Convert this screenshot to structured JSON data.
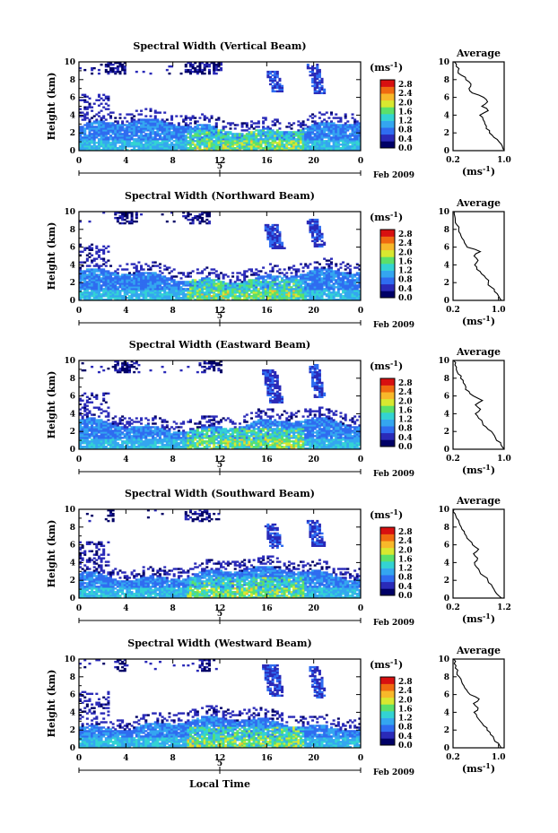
{
  "figure": {
    "xlabel": "Local Time",
    "date_mark": "5",
    "date_text": "Feb 2009"
  },
  "colorbar": {
    "unit": "(ms",
    "unit_exp": "-1",
    "unit_close": ")",
    "ticks": [
      "0.0",
      "0.4",
      "0.8",
      "1.2",
      "1.6",
      "2.0",
      "2.4",
      "2.8"
    ],
    "colors": [
      "#000066",
      "#2a2ab8",
      "#2f6cf0",
      "#34a6f0",
      "#33d3d3",
      "#5be06a",
      "#d8e830",
      "#f8b82a",
      "#f06a10",
      "#d81010"
    ],
    "range": [
      0,
      3.0
    ]
  },
  "average_panel": {
    "title": "Average",
    "xlabel": "(ms",
    "xlabel_exp": "-1",
    "xlabel_close": ")"
  },
  "chart_data": [
    {
      "type": "heatmap",
      "title": "Spectral Width (Vertical Beam)",
      "ylabel": "Height (km)",
      "x_ticks": [
        "0",
        "4",
        "8",
        "12",
        "16",
        "20",
        "0"
      ],
      "y_ticks": [
        "0",
        "2",
        "4",
        "6",
        "8",
        "10"
      ],
      "xlim": [
        0,
        24
      ],
      "ylim": [
        0,
        10
      ],
      "seed": 11,
      "plumes": [
        [
          15.8,
          16.8,
          6.5,
          8.8
        ],
        [
          19.3,
          20.3,
          6.3,
          9.7
        ]
      ],
      "upper_gaps": [
        [
          2,
          4
        ],
        [
          9,
          12
        ]
      ],
      "average": {
        "xlim": [
          0.2,
          1.0
        ],
        "x_ticks": [
          "0.2",
          "1.0"
        ],
        "y_ticks": [
          "0",
          "2",
          "4",
          "6",
          "8",
          "10"
        ],
        "height": [
          0,
          0.5,
          1,
          1.5,
          2,
          2.5,
          3,
          3.5,
          4,
          4.5,
          5,
          5.5,
          6,
          6.5,
          7,
          7.5,
          8,
          8.5,
          9,
          9.5,
          10
        ],
        "width": [
          1.0,
          0.97,
          0.92,
          0.84,
          0.77,
          0.72,
          0.7,
          0.67,
          0.62,
          0.75,
          0.65,
          0.74,
          0.68,
          0.5,
          0.45,
          0.48,
          0.4,
          0.33,
          0.28,
          0.25,
          0.22
        ]
      }
    },
    {
      "type": "heatmap",
      "title": "Spectral Width (Northward Beam)",
      "ylabel": "Height (km)",
      "x_ticks": [
        "0",
        "4",
        "8",
        "12",
        "16",
        "20",
        "0"
      ],
      "y_ticks": [
        "0",
        "2",
        "4",
        "6",
        "8",
        "10"
      ],
      "xlim": [
        0,
        24
      ],
      "ylim": [
        0,
        10
      ],
      "seed": 23,
      "plumes": [
        [
          15.6,
          16.8,
          5.8,
          8.5
        ],
        [
          19.3,
          20.3,
          5.9,
          9.1
        ]
      ],
      "upper_gaps": [
        [
          3,
          5
        ],
        [
          9,
          11
        ]
      ],
      "average": {
        "xlim": [
          0.2,
          1.1
        ],
        "x_ticks": [
          "0.2",
          "1.0"
        ],
        "y_ticks": [
          "0",
          "2",
          "4",
          "6",
          "8",
          "10"
        ],
        "height": [
          0,
          0.5,
          1,
          1.5,
          2,
          2.5,
          3,
          3.5,
          4,
          4.5,
          5,
          5.5,
          6,
          6.5,
          7,
          7.5,
          8,
          8.5,
          9,
          9.5,
          10
        ],
        "width": [
          1.05,
          1.0,
          0.93,
          0.87,
          0.82,
          0.78,
          0.7,
          0.62,
          0.58,
          0.64,
          0.57,
          0.68,
          0.45,
          0.4,
          0.36,
          0.33,
          0.3,
          0.27,
          0.24,
          0.23,
          0.22
        ]
      }
    },
    {
      "type": "heatmap",
      "title": "Spectral Width (Eastward Beam)",
      "ylabel": "Height (km)",
      "x_ticks": [
        "0",
        "4",
        "8",
        "12",
        "16",
        "20",
        "0"
      ],
      "y_ticks": [
        "0",
        "2",
        "4",
        "6",
        "8",
        "10"
      ],
      "xlim": [
        0,
        24
      ],
      "ylim": [
        0,
        10
      ],
      "seed": 37,
      "plumes": [
        [
          15.5,
          16.7,
          5.2,
          8.9
        ],
        [
          19.4,
          20.3,
          5.7,
          9.5
        ]
      ],
      "upper_gaps": [
        [
          3,
          5
        ],
        [
          10,
          12
        ]
      ],
      "average": {
        "xlim": [
          0.2,
          1.0
        ],
        "x_ticks": [
          "0.2",
          "1.0"
        ],
        "y_ticks": [
          "0",
          "2",
          "4",
          "6",
          "8",
          "10"
        ],
        "height": [
          0,
          0.5,
          1,
          1.5,
          2,
          2.5,
          3,
          3.5,
          4,
          4.5,
          5,
          5.5,
          6,
          6.5,
          7,
          7.5,
          8,
          8.5,
          9,
          9.5,
          10
        ],
        "width": [
          1.0,
          0.95,
          0.88,
          0.85,
          0.8,
          0.72,
          0.66,
          0.6,
          0.55,
          0.63,
          0.55,
          0.66,
          0.52,
          0.45,
          0.4,
          0.36,
          0.32,
          0.28,
          0.25,
          0.23,
          0.21
        ]
      }
    },
    {
      "type": "heatmap",
      "title": "Spectral Width (Southward Beam)",
      "ylabel": "Height (km)",
      "x_ticks": [
        "0",
        "4",
        "8",
        "12",
        "16",
        "20",
        "0"
      ],
      "y_ticks": [
        "0",
        "2",
        "4",
        "6",
        "8",
        "10"
      ],
      "xlim": [
        0,
        24
      ],
      "ylim": [
        0,
        10
      ],
      "seed": 53,
      "plumes": [
        [
          15.6,
          16.7,
          5.6,
          8.4
        ],
        [
          19.2,
          20.3,
          5.7,
          8.7
        ]
      ],
      "upper_gaps": [
        [
          2,
          3
        ],
        [
          9,
          11
        ]
      ],
      "average": {
        "xlim": [
          0.2,
          1.2
        ],
        "x_ticks": [
          "0.2",
          "1.2"
        ],
        "y_ticks": [
          "0",
          "2",
          "4",
          "6",
          "8",
          "10"
        ],
        "height": [
          0,
          0.5,
          1,
          1.5,
          2,
          2.5,
          3,
          3.5,
          4,
          4.5,
          5,
          5.5,
          6,
          6.5,
          7,
          7.5,
          8,
          8.5,
          9,
          9.5,
          10
        ],
        "width": [
          1.15,
          1.05,
          1.0,
          0.95,
          0.88,
          0.8,
          0.72,
          0.66,
          0.62,
          0.68,
          0.6,
          0.7,
          0.58,
          0.52,
          0.46,
          0.42,
          0.36,
          0.32,
          0.27,
          0.24,
          0.22
        ]
      }
    },
    {
      "type": "heatmap",
      "title": "Spectral Width (Westward Beam)",
      "ylabel": "Height (km)",
      "x_ticks": [
        "0",
        "4",
        "8",
        "12",
        "16",
        "20",
        "0"
      ],
      "y_ticks": [
        "0",
        "2",
        "4",
        "6",
        "8",
        "10"
      ],
      "xlim": [
        0,
        24
      ],
      "ylim": [
        0,
        10
      ],
      "seed": 71,
      "plumes": [
        [
          15.5,
          16.8,
          5.7,
          9.3
        ],
        [
          19.4,
          20.4,
          5.5,
          9.0
        ]
      ],
      "upper_gaps": [
        [
          3,
          4
        ],
        [
          10,
          11
        ]
      ],
      "average": {
        "xlim": [
          0.2,
          1.1
        ],
        "x_ticks": [
          "0.2",
          "1.0"
        ],
        "y_ticks": [
          "0",
          "2",
          "4",
          "6",
          "8",
          "10"
        ],
        "height": [
          0,
          0.5,
          1,
          1.5,
          2,
          2.5,
          3,
          3.5,
          4,
          4.5,
          5,
          5.5,
          6,
          6.5,
          7,
          7.5,
          8,
          8.5,
          9,
          9.5,
          10
        ],
        "width": [
          1.05,
          1.0,
          0.92,
          0.86,
          0.8,
          0.74,
          0.68,
          0.62,
          0.57,
          0.64,
          0.56,
          0.66,
          0.5,
          0.44,
          0.39,
          0.35,
          0.31,
          0.27,
          0.24,
          0.22,
          0.21
        ]
      }
    }
  ]
}
